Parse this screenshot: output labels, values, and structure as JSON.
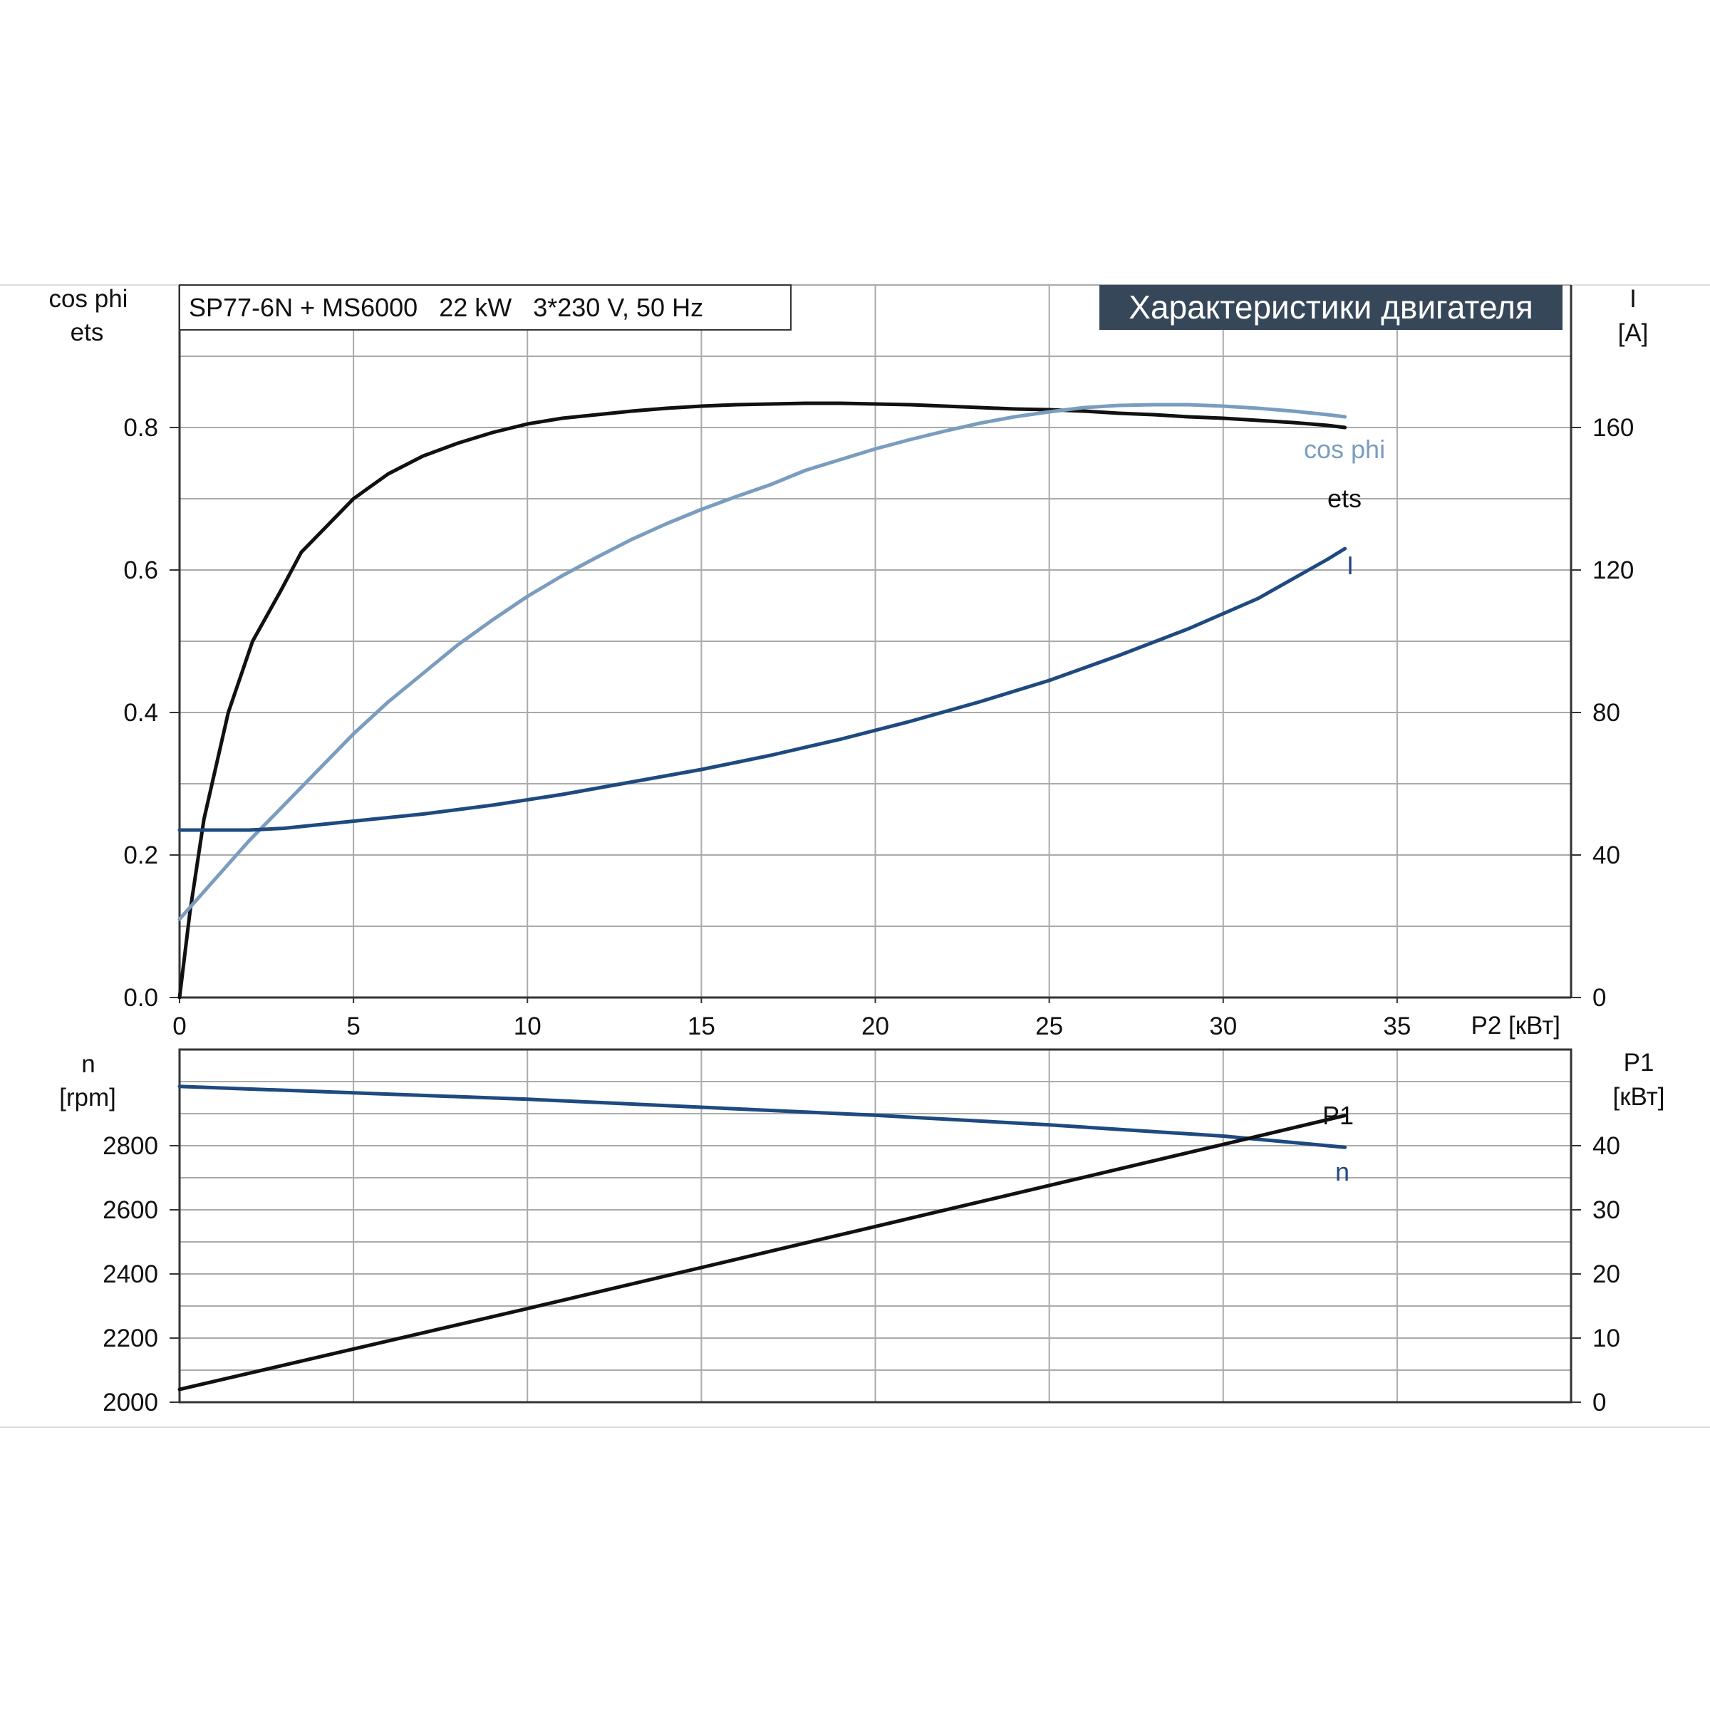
{
  "header": {
    "model_label": "SP77-6N + MS6000   22 kW   3*230 V, 50 Hz",
    "banner": "Характеристики двигателя"
  },
  "chart_data": [
    {
      "type": "line",
      "x_axis": {
        "label": "P2 [кВт]",
        "range": [
          0,
          40
        ],
        "ticks": [
          "0",
          "5",
          "10",
          "15",
          "20",
          "25",
          "30",
          "35"
        ]
      },
      "left_axis": {
        "label_line1": "cos phi",
        "label_line2": "ets",
        "range": [
          0,
          1.0
        ],
        "ticks": [
          "0.0",
          "0.2",
          "0.4",
          "0.6",
          "0.8"
        ]
      },
      "right_axis": {
        "label_line1": "I",
        "label_line2": "[A]",
        "range": [
          0,
          200
        ],
        "ticks": [
          "0",
          "40",
          "80",
          "120",
          "160"
        ]
      },
      "grid": true,
      "series": [
        {
          "name": "ets",
          "axis": "left",
          "color": "#111111",
          "x": [
            0,
            0.3,
            0.7,
            1.4,
            2.1,
            2.9,
            3.5,
            4.2,
            5.0,
            6.0,
            7.0,
            8.0,
            9.0,
            10.0,
            11.0,
            12.0,
            13.0,
            14.0,
            15.0,
            16.0,
            17.0,
            18.0,
            19.0,
            20.0,
            21.0,
            22.0,
            23.0,
            24.0,
            25.0,
            26.0,
            27.0,
            28.0,
            29.0,
            30.0,
            31.0,
            32.0,
            33.0,
            33.5
          ],
          "y": [
            0,
            0.12,
            0.25,
            0.4,
            0.5,
            0.57,
            0.625,
            0.66,
            0.7,
            0.735,
            0.76,
            0.778,
            0.793,
            0.805,
            0.813,
            0.818,
            0.823,
            0.827,
            0.83,
            0.832,
            0.833,
            0.834,
            0.834,
            0.833,
            0.832,
            0.83,
            0.828,
            0.826,
            0.825,
            0.823,
            0.82,
            0.818,
            0.815,
            0.813,
            0.81,
            0.807,
            0.803,
            0.8
          ]
        },
        {
          "name": "cos phi",
          "axis": "left",
          "color": "#7a9dbf",
          "x": [
            0,
            1,
            2,
            3,
            4,
            5,
            6,
            7,
            8,
            9,
            10,
            11,
            12,
            13,
            14,
            15,
            16,
            17,
            18,
            19,
            20,
            21,
            22,
            23,
            24,
            25,
            26,
            27,
            28,
            29,
            30,
            31,
            32,
            33,
            33.5
          ],
          "y": [
            0.11,
            0.165,
            0.22,
            0.27,
            0.32,
            0.37,
            0.415,
            0.455,
            0.495,
            0.53,
            0.563,
            0.592,
            0.618,
            0.643,
            0.665,
            0.685,
            0.703,
            0.72,
            0.74,
            0.755,
            0.77,
            0.783,
            0.795,
            0.806,
            0.815,
            0.822,
            0.828,
            0.831,
            0.832,
            0.832,
            0.83,
            0.827,
            0.823,
            0.818,
            0.815
          ]
        },
        {
          "name": "I",
          "axis": "right",
          "color": "#1e4a80",
          "x": [
            0,
            1,
            2,
            3,
            4,
            5,
            7,
            9,
            11,
            13,
            15,
            17,
            19,
            21,
            23,
            25,
            27,
            29,
            31,
            33,
            33.5
          ],
          "y": [
            47,
            47,
            47,
            47.5,
            48.5,
            49.5,
            51.5,
            54,
            57,
            60.5,
            64,
            68,
            72.5,
            77.5,
            83,
            89,
            96,
            103.5,
            112,
            123,
            126
          ]
        }
      ]
    },
    {
      "type": "line",
      "x_axis": {
        "range": [
          0,
          40
        ]
      },
      "left_axis": {
        "label_line1": "n",
        "label_line2": "[rpm]",
        "range": [
          2000,
          3100
        ],
        "ticks": [
          "2000",
          "2200",
          "2400",
          "2600",
          "2800"
        ]
      },
      "right_axis": {
        "label_line1": "P1",
        "label_line2": "[кВт]",
        "range": [
          0,
          55
        ],
        "ticks": [
          "0",
          "10",
          "20",
          "30",
          "40"
        ]
      },
      "grid": true,
      "series": [
        {
          "name": "n",
          "axis": "left",
          "color": "#1e4a80",
          "x": [
            0,
            5,
            10,
            15,
            20,
            25,
            30,
            33.5
          ],
          "y": [
            2985,
            2965,
            2945,
            2920,
            2895,
            2865,
            2830,
            2795
          ]
        },
        {
          "name": "P1",
          "axis": "right",
          "color": "#111111",
          "x": [
            0,
            5,
            10,
            15,
            20,
            25,
            30,
            33.5
          ],
          "y": [
            2,
            8.3,
            14.6,
            21,
            27.4,
            33.8,
            40.2,
            44.7
          ]
        }
      ]
    }
  ]
}
